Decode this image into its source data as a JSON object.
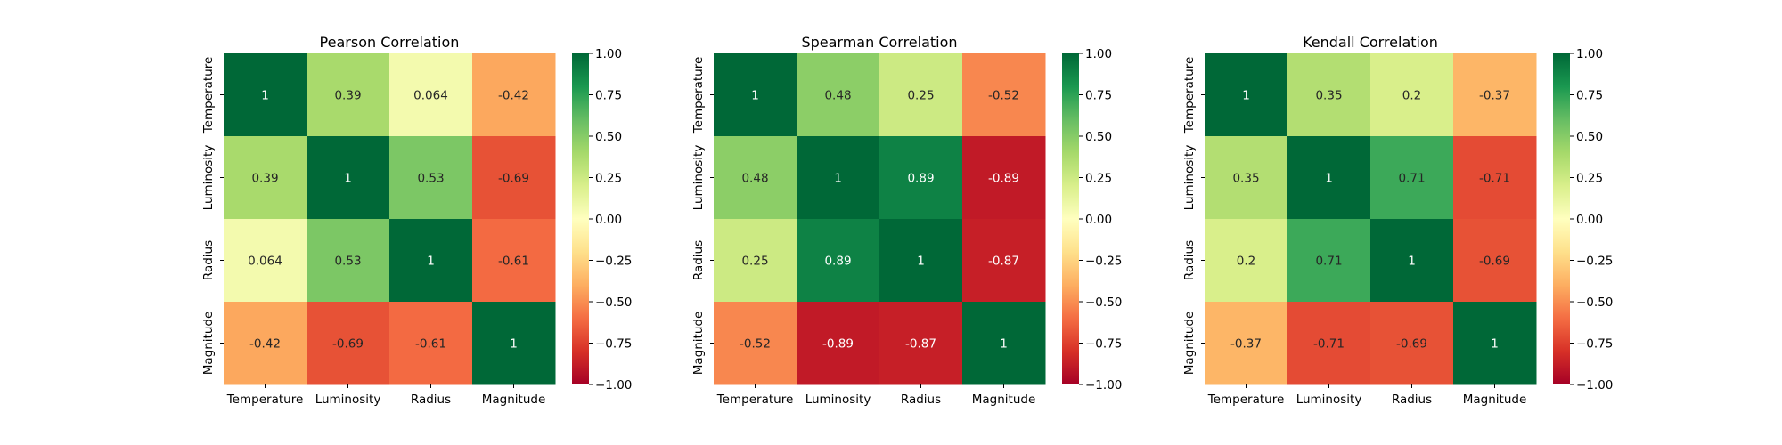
{
  "chart_data": [
    {
      "type": "heatmap",
      "title": "Pearson Correlation",
      "xlabel": "",
      "ylabel": "",
      "x_categories": [
        "Temperature",
        "Luminosity",
        "Radius",
        "Magnitude"
      ],
      "y_categories": [
        "Temperature",
        "Luminosity",
        "Radius",
        "Magnitude"
      ],
      "values": [
        [
          1,
          0.39,
          0.064,
          -0.42
        ],
        [
          0.39,
          1,
          0.53,
          -0.69
        ],
        [
          0.064,
          0.53,
          1,
          -0.61
        ],
        [
          -0.42,
          -0.69,
          -0.61,
          1
        ]
      ],
      "annotations": [
        [
          "1",
          "0.39",
          "0.064",
          "-0.42"
        ],
        [
          "0.39",
          "1",
          "0.53",
          "-0.69"
        ],
        [
          "0.064",
          "0.53",
          "1",
          "-0.61"
        ],
        [
          "-0.42",
          "-0.69",
          "-0.61",
          "1"
        ]
      ],
      "colormap": "RdYlGn",
      "vmin": -1,
      "vmax": 1,
      "colorbar_ticks": [
        "1.00",
        "0.75",
        "0.50",
        "0.25",
        "0.00",
        "−0.25",
        "−0.50",
        "−0.75",
        "−1.00"
      ],
      "colorbar_tick_values": [
        1,
        0.75,
        0.5,
        0.25,
        0,
        -0.25,
        -0.5,
        -0.75,
        -1
      ]
    },
    {
      "type": "heatmap",
      "title": "Spearman Correlation",
      "xlabel": "",
      "ylabel": "",
      "x_categories": [
        "Temperature",
        "Luminosity",
        "Radius",
        "Magnitude"
      ],
      "y_categories": [
        "Temperature",
        "Luminosity",
        "Radius",
        "Magnitude"
      ],
      "values": [
        [
          1,
          0.48,
          0.25,
          -0.52
        ],
        [
          0.48,
          1,
          0.89,
          -0.89
        ],
        [
          0.25,
          0.89,
          1,
          -0.87
        ],
        [
          -0.52,
          -0.89,
          -0.87,
          1
        ]
      ],
      "annotations": [
        [
          "1",
          "0.48",
          "0.25",
          "-0.52"
        ],
        [
          "0.48",
          "1",
          "0.89",
          "-0.89"
        ],
        [
          "0.25",
          "0.89",
          "1",
          "-0.87"
        ],
        [
          "-0.52",
          "-0.89",
          "-0.87",
          "1"
        ]
      ],
      "colormap": "RdYlGn",
      "vmin": -1,
      "vmax": 1,
      "colorbar_ticks": [
        "1.00",
        "0.75",
        "0.50",
        "0.25",
        "0.00",
        "−0.25",
        "−0.50",
        "−0.75",
        "−1.00"
      ],
      "colorbar_tick_values": [
        1,
        0.75,
        0.5,
        0.25,
        0,
        -0.25,
        -0.5,
        -0.75,
        -1
      ]
    },
    {
      "type": "heatmap",
      "title": "Kendall Correlation",
      "xlabel": "",
      "ylabel": "",
      "x_categories": [
        "Temperature",
        "Luminosity",
        "Radius",
        "Magnitude"
      ],
      "y_categories": [
        "Temperature",
        "Luminosity",
        "Radius",
        "Magnitude"
      ],
      "values": [
        [
          1,
          0.35,
          0.2,
          -0.37
        ],
        [
          0.35,
          1,
          0.71,
          -0.71
        ],
        [
          0.2,
          0.71,
          1,
          -0.69
        ],
        [
          -0.37,
          -0.71,
          -0.69,
          1
        ]
      ],
      "annotations": [
        [
          "1",
          "0.35",
          "0.2",
          "-0.37"
        ],
        [
          "0.35",
          "1",
          "0.71",
          "-0.71"
        ],
        [
          "0.2",
          "0.71",
          "1",
          "-0.69"
        ],
        [
          "-0.37",
          "-0.71",
          "-0.69",
          "1"
        ]
      ],
      "colormap": "RdYlGn",
      "vmin": -1,
      "vmax": 1,
      "colorbar_ticks": [
        "1.00",
        "0.75",
        "0.50",
        "0.25",
        "0.00",
        "−0.25",
        "−0.50",
        "−0.75",
        "−1.00"
      ],
      "colorbar_tick_values": [
        1,
        0.75,
        0.5,
        0.25,
        0,
        -0.25,
        -0.5,
        -0.75,
        -1
      ]
    }
  ]
}
